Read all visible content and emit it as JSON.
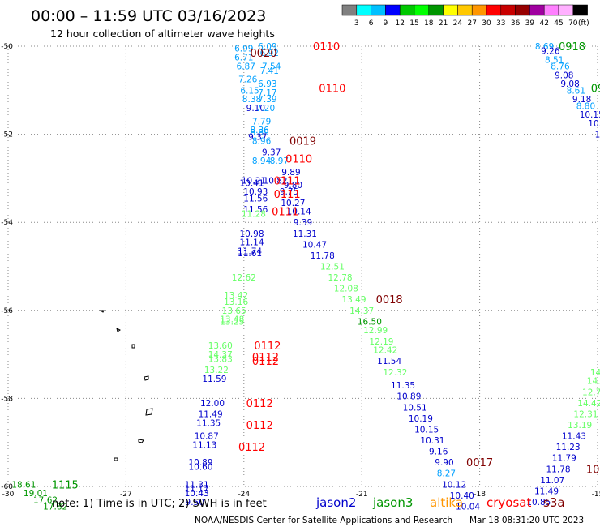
{
  "header": {
    "title": "00:00 – 11:59 UTC 03/16/2023",
    "subtitle": "12 hour collection of altimeter wave heights"
  },
  "legend_scale": {
    "colors": [
      "#808080",
      "#00ffff",
      "#00c0ff",
      "#0000ff",
      "#00c800",
      "#00ff00",
      "#009600",
      "#ffff00",
      "#ffc800",
      "#ff9600",
      "#ff0000",
      "#c80000",
      "#960000",
      "#a000a0",
      "#ff80ff",
      "#ffb0ff",
      "#000000"
    ],
    "ticks": [
      "3",
      "6",
      "9",
      "12",
      "15",
      "18",
      "21",
      "24",
      "27",
      "30",
      "33",
      "36",
      "39",
      "42",
      "45",
      "70"
    ],
    "unit": "(ft)"
  },
  "footer": {
    "note": "note:  1) Time is in UTC;  2) SWH is in feet",
    "credit": "NOAA/NESDIS Center for Satellite Applications and Research",
    "timestamp": "Mar 18 08:31:20 UTC 2023"
  },
  "satellites": [
    {
      "name": "jason2",
      "color": "#0000cc"
    },
    {
      "name": "jason3",
      "color": "#009600"
    },
    {
      "name": "altika",
      "color": "#ff9600"
    },
    {
      "name": "cryosat",
      "color": "#ff0000"
    },
    {
      "name": "s3a",
      "color": "#800000"
    }
  ],
  "chart_data": {
    "type": "scatter",
    "xlim": [
      -30,
      -15
    ],
    "ylim": [
      -60,
      -50
    ],
    "x_ticks": [
      "-30",
      "-27",
      "-24",
      "-21",
      "-18",
      "-15"
    ],
    "y_ticks": [
      "-50",
      "-52",
      "-54",
      "-56",
      "-58",
      "-60"
    ],
    "grid": true,
    "points": [
      {
        "lon": -24.0,
        "lat": -50.05,
        "text": "6.99",
        "color": "#00a0ff"
      },
      {
        "lon": -24.0,
        "lat": -50.25,
        "text": "6.71",
        "color": "#00a0ff"
      },
      {
        "lon": -23.95,
        "lat": -50.45,
        "text": "6.87",
        "color": "#00a0ff"
      },
      {
        "lon": -23.9,
        "lat": -50.75,
        "text": "7.26",
        "color": "#00a0ff"
      },
      {
        "lon": -23.85,
        "lat": -51.0,
        "text": "6.15",
        "color": "#00a0ff"
      },
      {
        "lon": -23.8,
        "lat": -51.2,
        "text": "8.38",
        "color": "#00a0ff"
      },
      {
        "lon": -23.7,
        "lat": -51.4,
        "text": "9.10",
        "color": "#0000cc"
      },
      {
        "lon": -23.4,
        "lat": -50.0,
        "text": "6.09",
        "color": "#00a0ff"
      },
      {
        "lon": -23.35,
        "lat": -50.15,
        "text": "6.92",
        "color": "#00a0ff"
      },
      {
        "lon": -23.3,
        "lat": -50.45,
        "text": "7.54",
        "color": "#00a0ff"
      },
      {
        "lon": -23.35,
        "lat": -50.55,
        "text": "7.41",
        "color": "#00a0ff"
      },
      {
        "lon": -23.4,
        "lat": -50.85,
        "text": "6.93",
        "color": "#00a0ff"
      },
      {
        "lon": -23.4,
        "lat": -51.05,
        "text": "7.17",
        "color": "#00a0ff"
      },
      {
        "lon": -23.4,
        "lat": -51.2,
        "text": "7.39",
        "color": "#00a0ff"
      },
      {
        "lon": -23.45,
        "lat": -51.4,
        "text": "7.20",
        "color": "#00a0ff"
      },
      {
        "lon": -23.55,
        "lat": -51.7,
        "text": "7.79",
        "color": "#00a0ff"
      },
      {
        "lon": -23.6,
        "lat": -51.9,
        "text": "8.36",
        "color": "#00a0ff"
      },
      {
        "lon": -23.6,
        "lat": -51.95,
        "text": "8.89",
        "color": "#00a0ff"
      },
      {
        "lon": -23.65,
        "lat": -52.05,
        "text": "9.37",
        "color": "#0000cc"
      },
      {
        "lon": -23.55,
        "lat": -52.15,
        "text": "8.96",
        "color": "#00a0ff"
      },
      {
        "lon": -23.3,
        "lat": -52.4,
        "text": "9.37",
        "color": "#0000cc"
      },
      {
        "lon": -23.55,
        "lat": -52.6,
        "text": "8.94",
        "color": "#00a0ff"
      },
      {
        "lon": -23.1,
        "lat": -52.6,
        "text": "8.97",
        "color": "#00a0ff"
      },
      {
        "lon": -22.8,
        "lat": -52.85,
        "text": "9.89",
        "color": "#0000cc"
      },
      {
        "lon": -23.75,
        "lat": -53.05,
        "text": "10.21",
        "color": "#0000cc"
      },
      {
        "lon": -23.8,
        "lat": -53.1,
        "text": "10.41",
        "color": "#0000cc"
      },
      {
        "lon": -23.2,
        "lat": -53.05,
        "text": "10.82",
        "color": "#0000cc"
      },
      {
        "lon": -22.75,
        "lat": -53.15,
        "text": "9.80",
        "color": "#0000cc"
      },
      {
        "lon": -23.7,
        "lat": -53.3,
        "text": "10.93",
        "color": "#0000cc"
      },
      {
        "lon": -22.85,
        "lat": -53.3,
        "text": "9.75",
        "color": "#0000cc"
      },
      {
        "lon": -23.7,
        "lat": -53.45,
        "text": "11.56",
        "color": "#0000cc"
      },
      {
        "lon": -22.75,
        "lat": -53.55,
        "text": "10.27",
        "color": "#0000cc"
      },
      {
        "lon": -23.7,
        "lat": -53.7,
        "text": "11.56",
        "color": "#0000cc"
      },
      {
        "lon": -23.75,
        "lat": -53.8,
        "text": "11.28",
        "color": "#66ff66"
      },
      {
        "lon": -22.6,
        "lat": -53.75,
        "text": "10.14",
        "color": "#0000cc"
      },
      {
        "lon": -22.5,
        "lat": -54.0,
        "text": "9.39",
        "color": "#0000cc"
      },
      {
        "lon": -23.8,
        "lat": -54.25,
        "text": "10.98",
        "color": "#0000cc"
      },
      {
        "lon": -22.45,
        "lat": -54.25,
        "text": "11.31",
        "color": "#0000cc"
      },
      {
        "lon": -23.8,
        "lat": -54.45,
        "text": "11.14",
        "color": "#0000cc"
      },
      {
        "lon": -22.2,
        "lat": -54.5,
        "text": "10.47",
        "color": "#0000cc"
      },
      {
        "lon": -23.85,
        "lat": -54.65,
        "text": "11.74",
        "color": "#0000cc"
      },
      {
        "lon": -23.85,
        "lat": -54.7,
        "text": "11.61",
        "color": "#0000cc"
      },
      {
        "lon": -22.0,
        "lat": -54.75,
        "text": "11.78",
        "color": "#0000cc"
      },
      {
        "lon": -21.75,
        "lat": -55.0,
        "text": "12.51",
        "color": "#66ff66"
      },
      {
        "lon": -24.0,
        "lat": -55.25,
        "text": "12.62",
        "color": "#66ff66"
      },
      {
        "lon": -21.55,
        "lat": -55.25,
        "text": "12.78",
        "color": "#66ff66"
      },
      {
        "lon": -21.4,
        "lat": -55.5,
        "text": "12.08",
        "color": "#66ff66"
      },
      {
        "lon": -24.2,
        "lat": -55.65,
        "text": "13.42",
        "color": "#66ff66"
      },
      {
        "lon": -24.2,
        "lat": -55.8,
        "text": "13.16",
        "color": "#66ff66"
      },
      {
        "lon": -21.2,
        "lat": -55.75,
        "text": "13.49",
        "color": "#66ff66"
      },
      {
        "lon": -24.25,
        "lat": -56.0,
        "text": "13.65",
        "color": "#66ff66"
      },
      {
        "lon": -21.0,
        "lat": -56.0,
        "text": "14.37",
        "color": "#66ff66"
      },
      {
        "lon": -24.3,
        "lat": -56.2,
        "text": "13.48",
        "color": "#66ff66"
      },
      {
        "lon": -24.3,
        "lat": -56.25,
        "text": "13.25",
        "color": "#66ff66"
      },
      {
        "lon": -20.8,
        "lat": -56.25,
        "text": "16.50",
        "color": "#009600"
      },
      {
        "lon": -20.65,
        "lat": -56.45,
        "text": "12.99",
        "color": "#66ff66"
      },
      {
        "lon": -20.5,
        "lat": -56.7,
        "text": "12.19",
        "color": "#66ff66"
      },
      {
        "lon": -24.6,
        "lat": -56.8,
        "text": "13.60",
        "color": "#66ff66"
      },
      {
        "lon": -20.4,
        "lat": -56.9,
        "text": "12.42",
        "color": "#66ff66"
      },
      {
        "lon": -24.6,
        "lat": -57.0,
        "text": "14.37",
        "color": "#66ff66"
      },
      {
        "lon": -24.6,
        "lat": -57.1,
        "text": "13.83",
        "color": "#66ff66"
      },
      {
        "lon": -20.3,
        "lat": -57.15,
        "text": "11.54",
        "color": "#0000cc"
      },
      {
        "lon": -24.7,
        "lat": -57.35,
        "text": "13.22",
        "color": "#66ff66"
      },
      {
        "lon": -20.15,
        "lat": -57.4,
        "text": "12.32",
        "color": "#66ff66"
      },
      {
        "lon": -24.75,
        "lat": -57.55,
        "text": "11.59",
        "color": "#0000cc"
      },
      {
        "lon": -19.95,
        "lat": -57.7,
        "text": "11.35",
        "color": "#0000cc"
      },
      {
        "lon": -19.8,
        "lat": -57.95,
        "text": "10.89",
        "color": "#0000cc"
      },
      {
        "lon": -24.8,
        "lat": -58.1,
        "text": "12.00",
        "color": "#0000cc"
      },
      {
        "lon": -19.65,
        "lat": -58.2,
        "text": "10.51",
        "color": "#0000cc"
      },
      {
        "lon": -24.85,
        "lat": -58.35,
        "text": "11.49",
        "color": "#0000cc"
      },
      {
        "lon": -19.5,
        "lat": -58.45,
        "text": "10.19",
        "color": "#0000cc"
      },
      {
        "lon": -24.9,
        "lat": -58.55,
        "text": "11.35",
        "color": "#0000cc"
      },
      {
        "lon": -19.35,
        "lat": -58.7,
        "text": "10.15",
        "color": "#0000cc"
      },
      {
        "lon": -24.95,
        "lat": -58.85,
        "text": "10.87",
        "color": "#0000cc"
      },
      {
        "lon": -19.2,
        "lat": -58.95,
        "text": "10.31",
        "color": "#0000cc"
      },
      {
        "lon": -25.0,
        "lat": -59.05,
        "text": "11.13",
        "color": "#0000cc"
      },
      {
        "lon": -19.05,
        "lat": -59.2,
        "text": "9.16",
        "color": "#0000cc"
      },
      {
        "lon": -18.9,
        "lat": -59.45,
        "text": "9.90",
        "color": "#0000cc"
      },
      {
        "lon": -25.1,
        "lat": -59.45,
        "text": "10.89",
        "color": "#0000cc"
      },
      {
        "lon": -25.1,
        "lat": -59.55,
        "text": "10.60",
        "color": "#0000cc"
      },
      {
        "lon": -18.85,
        "lat": -59.7,
        "text": "8.27",
        "color": "#00a0ff"
      },
      {
        "lon": -18.65,
        "lat": -59.95,
        "text": "10.12",
        "color": "#0000cc"
      },
      {
        "lon": -25.2,
        "lat": -59.95,
        "text": "11.31",
        "color": "#0000cc"
      },
      {
        "lon": -25.2,
        "lat": -60.05,
        "text": "11.17",
        "color": "#0000cc"
      },
      {
        "lon": -25.2,
        "lat": -60.15,
        "text": "10.43",
        "color": "#0000cc"
      },
      {
        "lon": -18.45,
        "lat": -60.2,
        "text": "10.40",
        "color": "#0000cc"
      },
      {
        "lon": -25.25,
        "lat": -60.35,
        "text": "9.50",
        "color": "#0000cc"
      },
      {
        "lon": -18.3,
        "lat": -60.45,
        "text": "10.04",
        "color": "#0000cc"
      },
      {
        "lon": -16.35,
        "lat": -50.0,
        "text": "8.69",
        "color": "#00a0ff"
      },
      {
        "lon": -16.2,
        "lat": -50.1,
        "text": "9.26",
        "color": "#0000cc"
      },
      {
        "lon": -16.1,
        "lat": -50.3,
        "text": "8.51",
        "color": "#00a0ff"
      },
      {
        "lon": -15.95,
        "lat": -50.45,
        "text": "8.76",
        "color": "#00a0ff"
      },
      {
        "lon": -15.85,
        "lat": -50.65,
        "text": "9.08",
        "color": "#0000cc"
      },
      {
        "lon": -15.7,
        "lat": -50.85,
        "text": "9.08",
        "color": "#0000cc"
      },
      {
        "lon": -15.55,
        "lat": -51.0,
        "text": "8.61",
        "color": "#00a0ff"
      },
      {
        "lon": -15.4,
        "lat": -51.2,
        "text": "9.18",
        "color": "#0000cc"
      },
      {
        "lon": -15.3,
        "lat": -51.35,
        "text": "8.80",
        "color": "#00a0ff"
      },
      {
        "lon": -15.15,
        "lat": -51.55,
        "text": "10.15",
        "color": "#0000cc"
      },
      {
        "lon": -15.0,
        "lat": -51.75,
        "text": "10.1",
        "color": "#0000cc"
      },
      {
        "lon": -15.0,
        "lat": -52.0,
        "text": "1",
        "color": "#0000cc"
      },
      {
        "lon": -15.05,
        "lat": -57.4,
        "text": "14",
        "color": "#66ff66"
      },
      {
        "lon": -15.1,
        "lat": -57.6,
        "text": "14.",
        "color": "#66ff66"
      },
      {
        "lon": -15.15,
        "lat": -57.85,
        "text": "12.7",
        "color": "#66ff66"
      },
      {
        "lon": -15.2,
        "lat": -58.1,
        "text": "14.42",
        "color": "#66ff66"
      },
      {
        "lon": -15.3,
        "lat": -58.35,
        "text": "12.31",
        "color": "#66ff66"
      },
      {
        "lon": -15.45,
        "lat": -58.6,
        "text": "13.19",
        "color": "#66ff66"
      },
      {
        "lon": -15.6,
        "lat": -58.85,
        "text": "11.43",
        "color": "#0000cc"
      },
      {
        "lon": -15.75,
        "lat": -59.1,
        "text": "11.23",
        "color": "#0000cc"
      },
      {
        "lon": -15.85,
        "lat": -59.35,
        "text": "11.79",
        "color": "#0000cc"
      },
      {
        "lon": -16.0,
        "lat": -59.6,
        "text": "11.78",
        "color": "#0000cc"
      },
      {
        "lon": -16.15,
        "lat": -59.85,
        "text": "11.07",
        "color": "#0000cc"
      },
      {
        "lon": -16.3,
        "lat": -60.1,
        "text": "11.49",
        "color": "#0000cc"
      },
      {
        "lon": -16.5,
        "lat": -60.35,
        "text": "10.85",
        "color": "#0000cc"
      },
      {
        "lon": -29.6,
        "lat": -59.95,
        "text": "18.61",
        "color": "#009600"
      },
      {
        "lon": -29.3,
        "lat": -60.15,
        "text": "19.01",
        "color": "#009600"
      },
      {
        "lon": -29.05,
        "lat": -60.3,
        "text": "17.62",
        "color": "#009600"
      },
      {
        "lon": -28.8,
        "lat": -60.45,
        "text": "17.82",
        "color": "#009600"
      }
    ],
    "time_labels": [
      {
        "lon": -23.5,
        "lat": -50.15,
        "text": "0020",
        "color": "#800000"
      },
      {
        "lon": -21.9,
        "lat": -50.0,
        "text": "0110",
        "color": "#ff0000"
      },
      {
        "lon": -21.75,
        "lat": -50.95,
        "text": "0110",
        "color": "#ff0000"
      },
      {
        "lon": -22.5,
        "lat": -52.15,
        "text": "0019",
        "color": "#800000"
      },
      {
        "lon": -22.6,
        "lat": -52.55,
        "text": "0110",
        "color": "#ff0000"
      },
      {
        "lon": -22.9,
        "lat": -53.05,
        "text": "0111",
        "color": "#ff0000"
      },
      {
        "lon": -22.9,
        "lat": -53.35,
        "text": "0111",
        "color": "#ff0000"
      },
      {
        "lon": -22.95,
        "lat": -53.75,
        "text": "0111",
        "color": "#ff0000"
      },
      {
        "lon": -20.3,
        "lat": -55.75,
        "text": "0018",
        "color": "#800000"
      },
      {
        "lon": -23.4,
        "lat": -56.8,
        "text": "0112",
        "color": "#ff0000"
      },
      {
        "lon": -23.45,
        "lat": -57.05,
        "text": "0112",
        "color": "#ff0000"
      },
      {
        "lon": -23.45,
        "lat": -57.15,
        "text": "0112",
        "color": "#ff0000"
      },
      {
        "lon": -23.6,
        "lat": -58.1,
        "text": "0112",
        "color": "#ff0000"
      },
      {
        "lon": -23.6,
        "lat": -58.6,
        "text": "0112",
        "color": "#ff0000"
      },
      {
        "lon": -23.8,
        "lat": -59.1,
        "text": "0112",
        "color": "#ff0000"
      },
      {
        "lon": -18.0,
        "lat": -59.45,
        "text": "0017",
        "color": "#800000"
      },
      {
        "lon": -15.65,
        "lat": -50.0,
        "text": "0918",
        "color": "#009600"
      },
      {
        "lon": -15.0,
        "lat": -50.95,
        "text": "09",
        "color": "#009600"
      },
      {
        "lon": -14.95,
        "lat": -59.6,
        "text": "1007",
        "color": "#800000"
      },
      {
        "lon": -28.55,
        "lat": -59.95,
        "text": "1115",
        "color": "#009600"
      }
    ]
  }
}
